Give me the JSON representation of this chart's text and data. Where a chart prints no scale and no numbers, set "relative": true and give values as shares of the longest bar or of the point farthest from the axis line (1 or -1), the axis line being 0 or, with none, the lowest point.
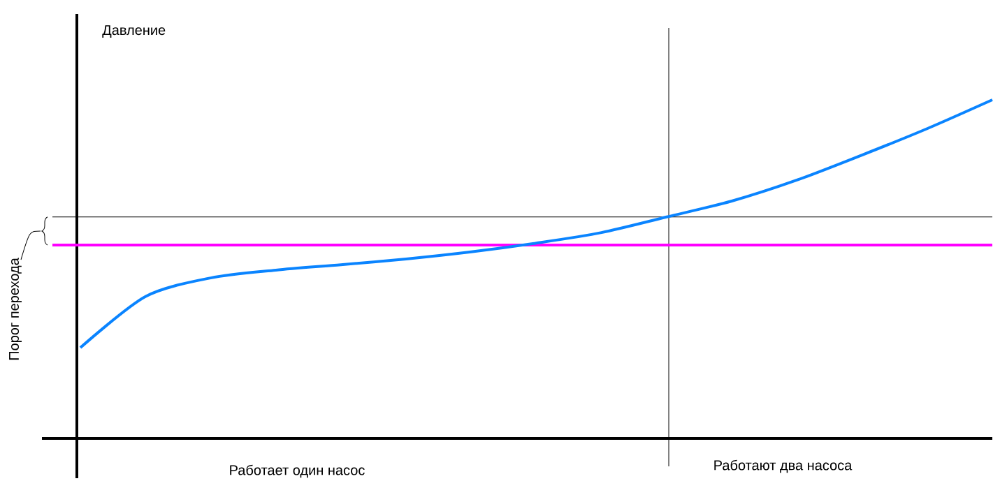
{
  "chart_data": {
    "type": "line",
    "relative": true,
    "categories": [
      null,
      null,
      null,
      null,
      null,
      null,
      null,
      null,
      null,
      null,
      null,
      null,
      null,
      null,
      null
    ],
    "series": [
      {
        "color": "#0a84ff",
        "values": [
          0.268,
          0.419,
          0.474,
          0.497,
          0.513,
          0.53,
          0.551,
          0.577,
          0.608,
          0.654,
          0.701,
          0.763,
          0.837,
          0.915,
          1.0
        ]
      }
    ],
    "ref_lines": [
      {
        "axis": "y",
        "value": 0.654,
        "color": "#000000"
      },
      {
        "axis": "y",
        "value": 0.571,
        "color": "#ff00ff"
      }
    ],
    "annotations": [
      "Давление",
      "Порог перехода",
      "Работает один насос",
      "Работают два насоса"
    ],
    "line_style": "solid"
  }
}
